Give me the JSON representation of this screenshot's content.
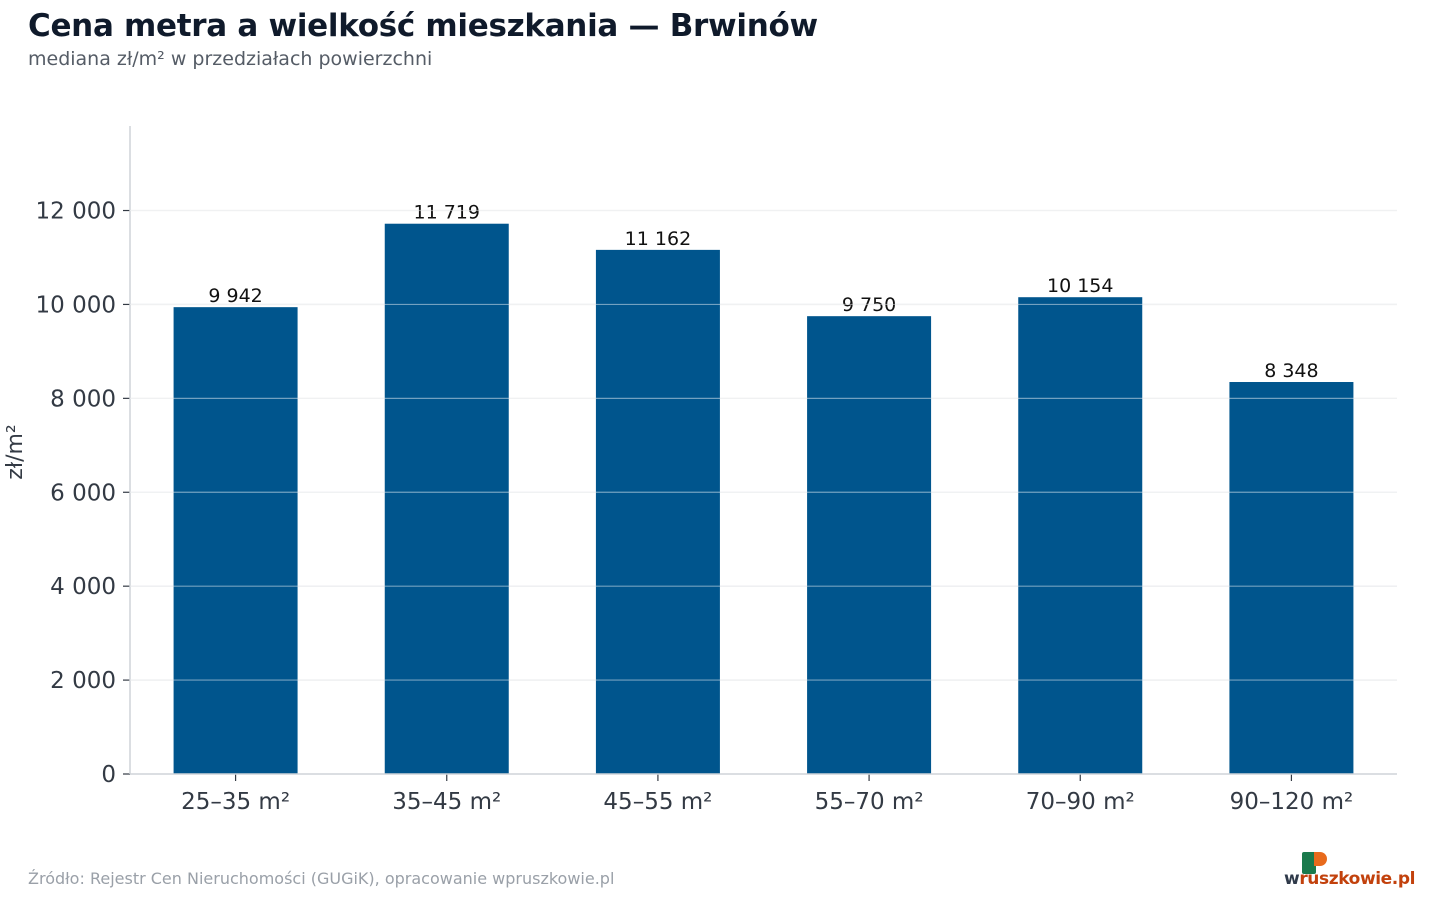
{
  "header": {
    "title": "Cena metra a wielkość mieszkania — Brwinów",
    "subtitle": "mediana zł/m² w przedziałach powierzchni"
  },
  "footer": {
    "source": "Źródło: Rejestr Cen Nieruchomości (GUGiK), opracowanie wpruszkowie.pl",
    "logo_w": "w",
    "logo_rest": "ruszkowie.pl"
  },
  "colors": {
    "bar": "#00558d",
    "grid": "#e3e5e8",
    "axis": "#cfd3d8",
    "tick_text": "#333a44",
    "value_text": "#111111",
    "logo_green": "#1a7a4c",
    "logo_orange": "#e86a1c"
  },
  "chart_data": {
    "type": "bar",
    "title": "Cena metra a wielkość mieszkania — Brwinów",
    "subtitle": "mediana zł/m² w przedziałach powierzchni",
    "xlabel": "",
    "ylabel": "zł/m²",
    "categories": [
      "25–35 m²",
      "35–45 m²",
      "45–55 m²",
      "55–70 m²",
      "70–90 m²",
      "90–120 m²"
    ],
    "values": [
      9942,
      11719,
      11162,
      9750,
      10154,
      8348
    ],
    "value_labels": [
      "9 942",
      "11 719",
      "11 162",
      "9 750",
      "10 154",
      "8 348"
    ],
    "ylim": [
      0,
      13800
    ],
    "yticks": [
      0,
      2000,
      4000,
      6000,
      8000,
      10000,
      12000
    ],
    "ytick_labels": [
      "0",
      "2 000",
      "4 000",
      "6 000",
      "8 000",
      "10 000",
      "12 000"
    ],
    "grid": true,
    "legend": "none"
  }
}
